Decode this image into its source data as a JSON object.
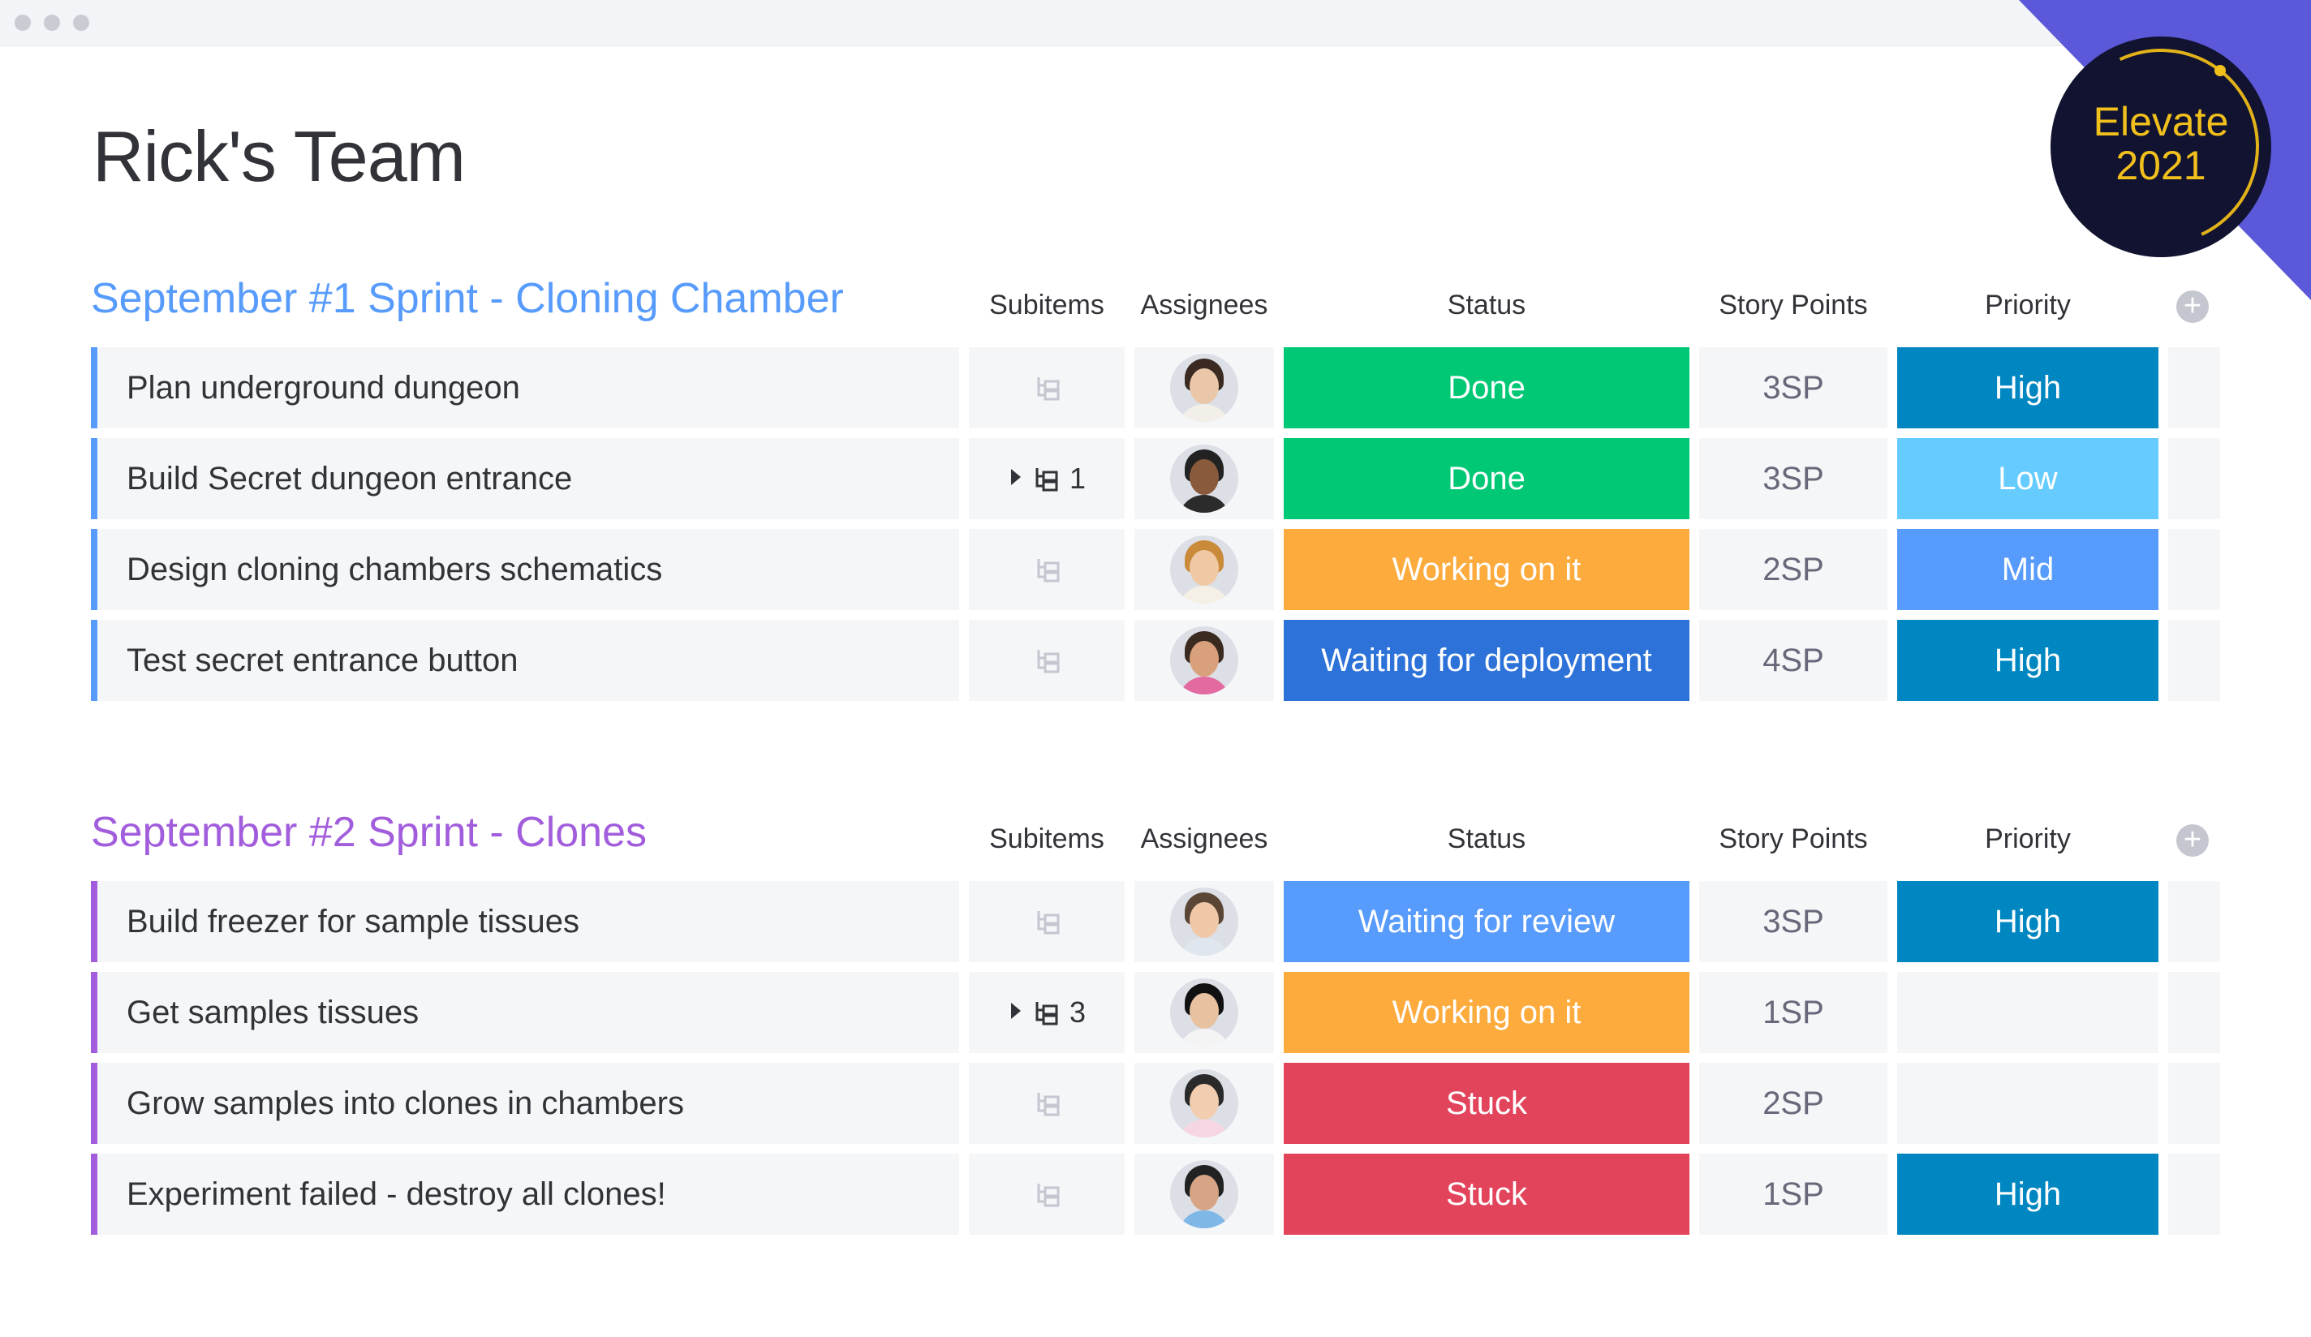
{
  "page": {
    "title": "Rick's Team"
  },
  "badge": {
    "line1": "Elevate",
    "line2": "2021"
  },
  "columns": {
    "subitems": "Subitems",
    "assignees": "Assignees",
    "status": "Status",
    "story_points": "Story Points",
    "priority": "Priority"
  },
  "colors": {
    "done": "#00c875",
    "working": "#fdab3d",
    "deployment": "#2d72d9",
    "review": "#579bfc",
    "stuck": "#e2445c",
    "high": "#0086c0",
    "low": "#66ccff",
    "mid": "#579bfc",
    "group1": "#579bfc",
    "group2": "#a25ddc"
  },
  "groups": [
    {
      "title": "September #1 Sprint - Cloning Chamber",
      "rows": [
        {
          "name": "Plan underground dungeon",
          "subitems": "",
          "status": "Done",
          "story_points": "3SP",
          "priority": "High"
        },
        {
          "name": "Build Secret dungeon entrance",
          "subitems": "1",
          "status": "Done",
          "story_points": "3SP",
          "priority": "Low"
        },
        {
          "name": "Design cloning chambers schematics",
          "subitems": "",
          "status": "Working on it",
          "story_points": "2SP",
          "priority": "Mid"
        },
        {
          "name": "Test secret entrance button",
          "subitems": "",
          "status": "Waiting for deployment",
          "story_points": "4SP",
          "priority": "High"
        }
      ]
    },
    {
      "title": "September #2 Sprint - Clones",
      "rows": [
        {
          "name": "Build freezer for sample tissues",
          "subitems": "",
          "status": "Waiting for review",
          "story_points": "3SP",
          "priority": "High"
        },
        {
          "name": "Get samples tissues",
          "subitems": "3",
          "status": "Working on it",
          "story_points": "1SP",
          "priority": ""
        },
        {
          "name": "Grow samples into clones in chambers",
          "subitems": "",
          "status": "Stuck",
          "story_points": "2SP",
          "priority": ""
        },
        {
          "name": "Experiment failed - destroy all clones!",
          "subitems": "",
          "status": "Stuck",
          "story_points": "1SP",
          "priority": "High"
        }
      ]
    }
  ]
}
